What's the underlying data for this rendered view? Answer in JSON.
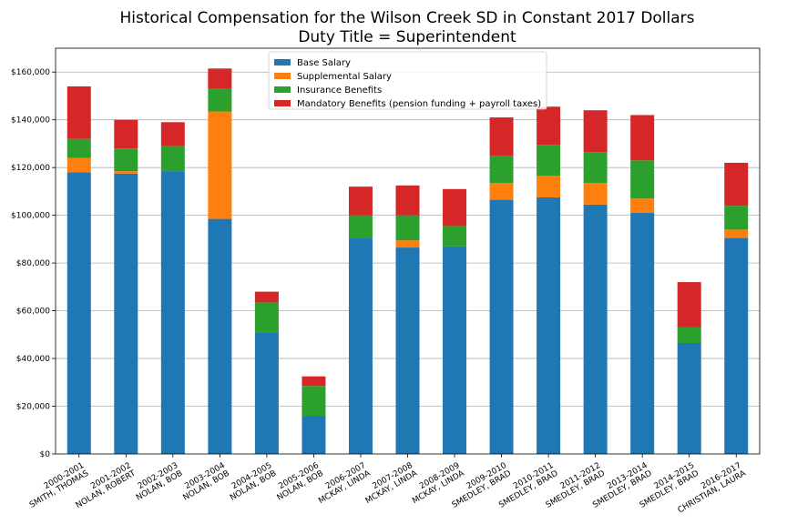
{
  "chart_data": {
    "type": "bar",
    "stacked": true,
    "title": "Historical Compensation for the Wilson Creek SD in Constant 2017 Dollars",
    "subtitle": "Duty Title = Superintendent",
    "xlabel": "",
    "ylabel": "",
    "ylim": [
      0,
      170000
    ],
    "yticks": [
      0,
      20000,
      40000,
      60000,
      80000,
      100000,
      120000,
      140000,
      160000
    ],
    "ytick_labels": [
      "$0",
      "$20,000",
      "$40,000",
      "$60,000",
      "$80,000",
      "$100,000",
      "$120,000",
      "$140,000",
      "$160,000"
    ],
    "grid": "horizontal",
    "legend_position": "top-center",
    "categories": [
      [
        "2000-2001",
        "SMITH, THOMAS"
      ],
      [
        "2001-2002",
        "NOLAN, ROBERT"
      ],
      [
        "2002-2003",
        "NOLAN, BOB"
      ],
      [
        "2003-2004",
        "NOLAN, BOB"
      ],
      [
        "2004-2005",
        "NOLAN, BOB"
      ],
      [
        "2005-2006",
        "NOLAN, BOB"
      ],
      [
        "2006-2007",
        "MCKAY, LINDA"
      ],
      [
        "2007-2008",
        "MCKAY, LINDA"
      ],
      [
        "2008-2009",
        "MCKAY, LINDA"
      ],
      [
        "2009-2010",
        "SMEDLEY, BRAD"
      ],
      [
        "2010-2011",
        "SMEDLEY, BRAD"
      ],
      [
        "2011-2012",
        "SMEDLEY, BRAD"
      ],
      [
        "2013-2014",
        "SMEDLEY, BRAD"
      ],
      [
        "2014-2015",
        "SMEDLEY, BRAD"
      ],
      [
        "2016-2017",
        "CHRISTIAN, LAURA"
      ]
    ],
    "series": [
      {
        "name": "Base Salary",
        "color": "#1f77b4",
        "values": [
          118000,
          117500,
          118500,
          98500,
          51000,
          16000,
          90500,
          86500,
          87000,
          106500,
          107500,
          104500,
          101000,
          46500,
          90500
        ]
      },
      {
        "name": "Supplemental Salary",
        "color": "#ff7f0e",
        "values": [
          6000,
          1000,
          0,
          45000,
          0,
          0,
          0,
          3000,
          0,
          7000,
          9000,
          9000,
          6000,
          0,
          3500
        ]
      },
      {
        "name": "Insurance Benefits",
        "color": "#2ca02c",
        "values": [
          8000,
          9500,
          10500,
          9500,
          12500,
          12500,
          9500,
          10500,
          8500,
          11500,
          13000,
          13000,
          16000,
          6500,
          10000
        ]
      },
      {
        "name": "Mandatory Benefits (pension funding + payroll taxes)",
        "color": "#d62728",
        "values": [
          22000,
          12000,
          10000,
          8500,
          4500,
          4000,
          12000,
          12500,
          15500,
          16000,
          16000,
          17500,
          19000,
          19000,
          18000
        ]
      }
    ]
  }
}
